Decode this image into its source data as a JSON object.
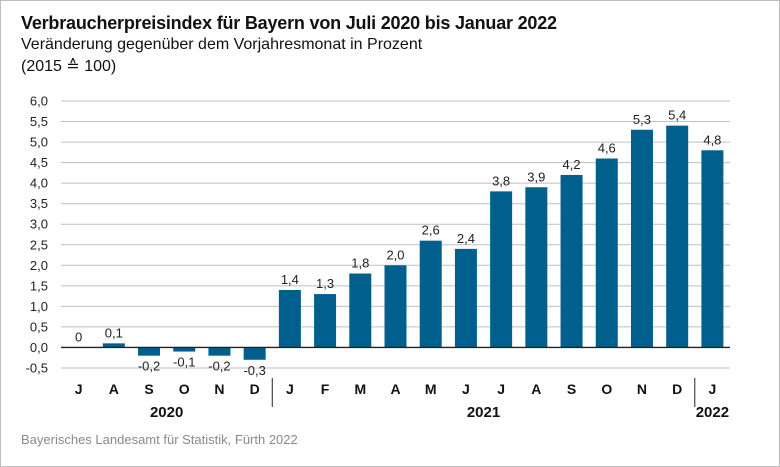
{
  "title": "Verbraucherpreisindex für Bayern von Juli 2020 bis Januar 2022",
  "subtitle": "Veränderung gegenüber dem Vorjahresmonat in Prozent",
  "unit_note": "(2015 ≙ 100)",
  "source": "Bayerisches Landesamt für Statistik, Fürth 2022",
  "colors": {
    "bar": "#005f8c",
    "grid": "#bfbfbf",
    "axis": "#222222"
  },
  "chart_data": {
    "type": "bar",
    "title": "Verbraucherpreisindex für Bayern von Juli 2020 bis Januar 2022",
    "subtitle": "Veränderung gegenüber dem Vorjahresmonat in Prozent",
    "categories": [
      "J",
      "A",
      "S",
      "O",
      "N",
      "D",
      "J",
      "F",
      "M",
      "A",
      "M",
      "J",
      "J",
      "A",
      "S",
      "O",
      "N",
      "D",
      "J"
    ],
    "values": [
      0,
      0.1,
      -0.2,
      -0.1,
      -0.2,
      -0.3,
      1.4,
      1.3,
      1.8,
      2.0,
      2.6,
      2.4,
      3.8,
      3.9,
      4.2,
      4.6,
      5.3,
      5.4,
      4.8
    ],
    "value_labels": [
      "0",
      "0,1",
      "-0,2",
      "-0,1",
      "-0,2",
      "-0,3",
      "1,4",
      "1,3",
      "1,8",
      "2,0",
      "2,6",
      "2,4",
      "3,8",
      "3,9",
      "4,2",
      "4,6",
      "5,3",
      "5,4",
      "4,8"
    ],
    "groups": [
      {
        "label": "2020",
        "start": 0,
        "end": 5
      },
      {
        "label": "2021",
        "start": 6,
        "end": 17
      },
      {
        "label": "2022",
        "start": 18,
        "end": 18
      }
    ],
    "yticks": [
      "6,0",
      "5,5",
      "5,0",
      "4,5",
      "4,0",
      "3,5",
      "3,0",
      "2,5",
      "2,0",
      "1,5",
      "1,0",
      "0,5",
      "0,0",
      "-0,5"
    ],
    "ytick_values": [
      6.0,
      5.5,
      5.0,
      4.5,
      4.0,
      3.5,
      3.0,
      2.5,
      2.0,
      1.5,
      1.0,
      0.5,
      0.0,
      -0.5
    ],
    "ylim": [
      -0.5,
      6.0
    ],
    "grid": true,
    "legend": "none"
  }
}
